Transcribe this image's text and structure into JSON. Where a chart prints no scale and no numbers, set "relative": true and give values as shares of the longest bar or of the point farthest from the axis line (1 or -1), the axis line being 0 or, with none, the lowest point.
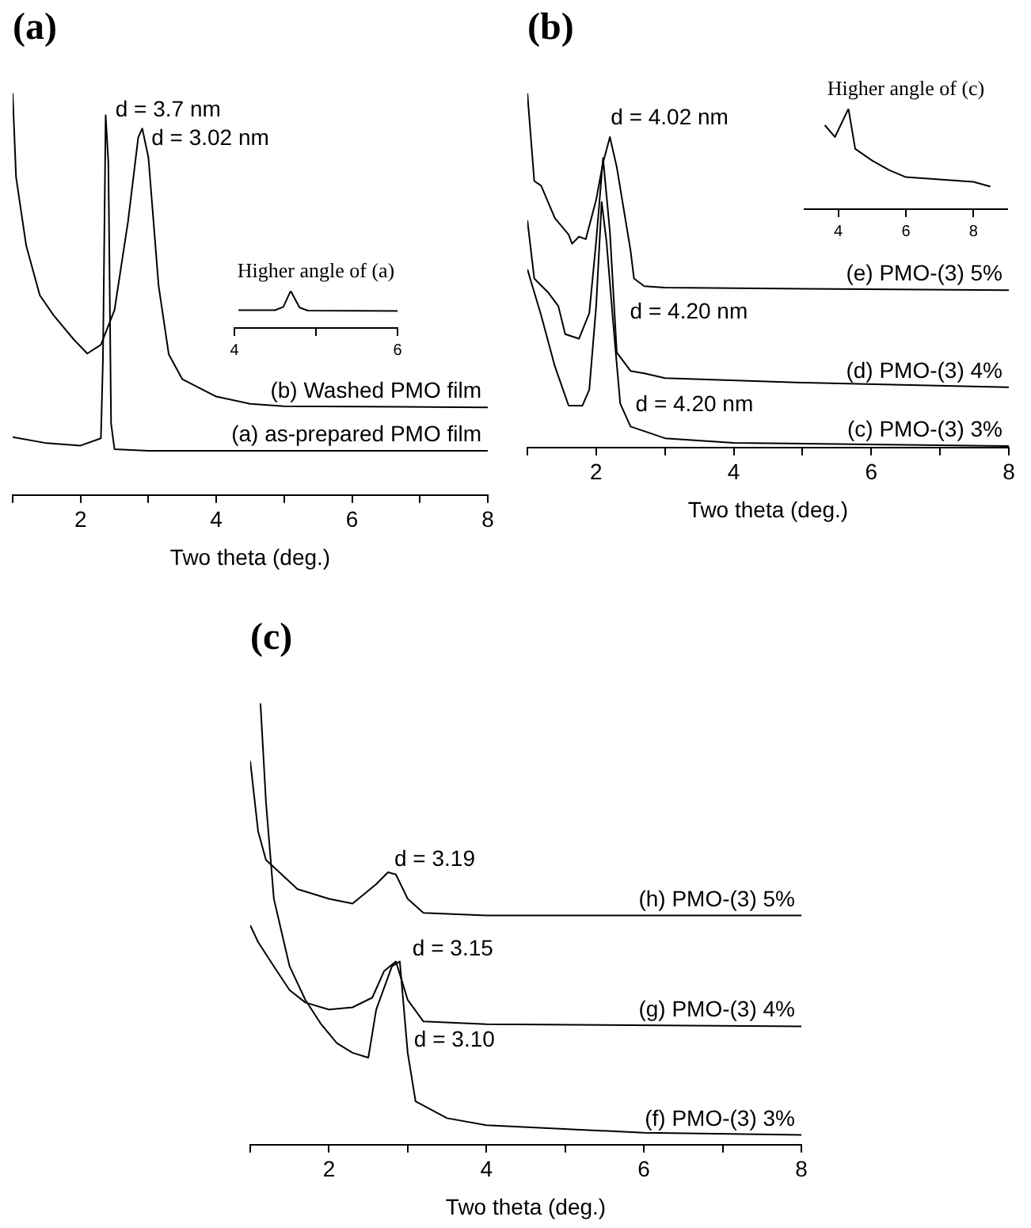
{
  "chart_data": [
    {
      "type": "line",
      "title": "(a)",
      "xlabel": "Two theta (deg.)",
      "relative": true,
      "legend": false,
      "xlim": [
        1,
        8
      ],
      "xticks": [
        {
          "value": 1,
          "label": null
        },
        2,
        {
          "value": 3,
          "label": null
        },
        4,
        {
          "value": 5,
          "label": null
        },
        6,
        {
          "value": 7,
          "label": null
        },
        8
      ],
      "series": [
        {
          "name": "(a) as-prepared PMO film",
          "color": "#000000",
          "x": [
            1,
            1.5,
            2.0,
            2.3,
            2.33,
            2.37,
            2.41,
            2.45,
            2.5,
            3,
            8
          ],
          "values": [
            0.144,
            0.129,
            0.123,
            0.141,
            0.337,
            0.945,
            0.828,
            0.178,
            0.114,
            0.11,
            0.11
          ]
        },
        {
          "name": "(b) Washed PMO film",
          "color": "#000000",
          "x": [
            1,
            1.05,
            1.2,
            1.4,
            1.6,
            1.9,
            2.1,
            2.3,
            2.5,
            2.7,
            2.85,
            2.91,
            3.0,
            3.15,
            3.3,
            3.5,
            4,
            4.5,
            5,
            8
          ],
          "values": [
            1.0,
            0.791,
            0.62,
            0.497,
            0.448,
            0.387,
            0.352,
            0.374,
            0.46,
            0.681,
            0.89,
            0.912,
            0.84,
            0.521,
            0.35,
            0.288,
            0.245,
            0.227,
            0.221,
            0.218
          ]
        }
      ],
      "annotations": [
        {
          "text": "d = 3.7 nm",
          "x": 2.42,
          "y": 0.926
        },
        {
          "text": "d = 3.02 nm",
          "x": 2.95,
          "y": 0.855
        }
      ]
    },
    {
      "type": "line",
      "title": "Higher angle of (a)",
      "relative": true,
      "legend": false,
      "xlim": [
        4,
        6
      ],
      "xticks": [
        4,
        {
          "value": 5,
          "label": null
        },
        6
      ],
      "series": [
        {
          "color": "#000000",
          "x": [
            4.05,
            4.5,
            4.6,
            4.69,
            4.8,
            4.9,
            6
          ],
          "values": [
            0.48,
            0.48,
            0.57,
            1.0,
            0.55,
            0.47,
            0.46
          ]
        }
      ]
    },
    {
      "type": "line",
      "title": "(b)",
      "xlabel": "Two theta (deg.)",
      "relative": true,
      "legend": false,
      "xlim": [
        1,
        8
      ],
      "xticks": [
        {
          "value": 1,
          "label": null
        },
        2,
        {
          "value": 3,
          "label": null
        },
        4,
        {
          "value": 5,
          "label": null
        },
        6,
        {
          "value": 7,
          "label": null
        },
        8
      ],
      "series": [
        {
          "name": "(e) PMO-(3) 5%",
          "color": "#000000",
          "x": [
            1,
            1.1,
            1.2,
            1.4,
            1.6,
            1.65,
            1.75,
            1.85,
            2.0,
            2.1,
            2.2,
            2.3,
            2.5,
            2.55,
            2.7,
            3,
            8
          ],
          "values": [
            1.0,
            0.752,
            0.739,
            0.647,
            0.601,
            0.575,
            0.595,
            0.588,
            0.699,
            0.804,
            0.876,
            0.791,
            0.556,
            0.477,
            0.455,
            0.451,
            0.444
          ]
        },
        {
          "name": "(d) PMO-(3) 4%",
          "color": "#000000",
          "x": [
            1,
            1.1,
            1.3,
            1.45,
            1.55,
            1.75,
            1.9,
            2.0,
            2.05,
            2.1,
            2.2,
            2.3,
            2.5,
            2.7,
            3,
            5,
            8
          ],
          "values": [
            0.641,
            0.477,
            0.438,
            0.399,
            0.32,
            0.307,
            0.379,
            0.582,
            0.699,
            0.817,
            0.608,
            0.268,
            0.216,
            0.209,
            0.196,
            0.183,
            0.17
          ]
        },
        {
          "name": "(c) PMO-(3) 3%",
          "color": "#000000",
          "x": [
            1,
            1.2,
            1.4,
            1.6,
            1.8,
            1.9,
            2.0,
            2.08,
            2.15,
            2.25,
            2.35,
            2.5,
            3,
            4,
            8
          ],
          "values": [
            0.503,
            0.373,
            0.229,
            0.118,
            0.118,
            0.163,
            0.399,
            0.693,
            0.582,
            0.346,
            0.124,
            0.059,
            0.026,
            0.013,
            0.004
          ]
        }
      ],
      "annotations": [
        {
          "text": "d = 4.02 nm",
          "x": 2.12,
          "y": 0.895
        },
        {
          "text": "d = 4.20 nm",
          "x": 2.4,
          "y": 0.346
        },
        {
          "text": "d = 4.20 nm",
          "x": 2.48,
          "y": 0.085
        }
      ]
    },
    {
      "type": "line",
      "title": "Higher angle of (c)",
      "relative": true,
      "legend": false,
      "xlim": [
        3,
        9
      ],
      "xticks": [
        4,
        6,
        8
      ],
      "series": [
        {
          "color": "#000000",
          "x": [
            3.6,
            3.9,
            4.3,
            4.5,
            5,
            5.5,
            6,
            7,
            8,
            8.5
          ],
          "values": [
            0.836,
            0.718,
            1.0,
            0.6,
            0.484,
            0.39,
            0.319,
            0.296,
            0.272,
            0.225
          ]
        }
      ]
    },
    {
      "type": "line",
      "title": "(c)",
      "xlabel": "Two theta (deg.)",
      "relative": true,
      "legend": false,
      "xlim": [
        1,
        8
      ],
      "xticks": [
        {
          "value": 1,
          "label": null
        },
        2,
        {
          "value": 3,
          "label": null
        },
        4,
        {
          "value": 5,
          "label": null
        },
        6,
        {
          "value": 7,
          "label": null
        },
        8
      ],
      "series": [
        {
          "name": "(h) PMO-(3) 5%",
          "color": "#000000",
          "x": [
            1.0,
            1.1,
            1.2,
            1.4,
            1.6,
            2.0,
            2.3,
            2.6,
            2.75,
            2.85,
            3.0,
            3.2,
            4,
            8
          ],
          "values": [
            0.869,
            0.71,
            0.645,
            0.612,
            0.579,
            0.557,
            0.546,
            0.59,
            0.617,
            0.612,
            0.557,
            0.525,
            0.519,
            0.519
          ]
        },
        {
          "name": "(g) PMO-(3) 4%",
          "color": "#000000",
          "x": [
            1.0,
            1.1,
            1.3,
            1.5,
            1.7,
            2.0,
            2.3,
            2.55,
            2.7,
            2.85,
            3.0,
            3.2,
            4,
            8
          ],
          "values": [
            0.497,
            0.459,
            0.404,
            0.35,
            0.322,
            0.306,
            0.311,
            0.333,
            0.393,
            0.415,
            0.328,
            0.279,
            0.273,
            0.268
          ]
        },
        {
          "name": "(f) PMO-(3) 3%",
          "color": "#000000",
          "x": [
            1.13,
            1.2,
            1.3,
            1.5,
            1.7,
            1.9,
            2.1,
            2.3,
            2.5,
            2.6,
            2.8,
            2.9,
            3.0,
            3.1,
            3.5,
            4,
            6,
            8
          ],
          "values": [
            1.0,
            0.776,
            0.557,
            0.404,
            0.328,
            0.273,
            0.23,
            0.208,
            0.197,
            0.306,
            0.404,
            0.415,
            0.208,
            0.098,
            0.06,
            0.044,
            0.027,
            0.022
          ]
        }
      ],
      "annotations": [
        {
          "text": "d = 3.19",
          "x": 2.75,
          "y": 0.617
        },
        {
          "text": "d = 3.15",
          "x": 2.98,
          "y": 0.415
        },
        {
          "text": "d = 3.10",
          "x": 3.0,
          "y": 0.208
        }
      ]
    }
  ]
}
